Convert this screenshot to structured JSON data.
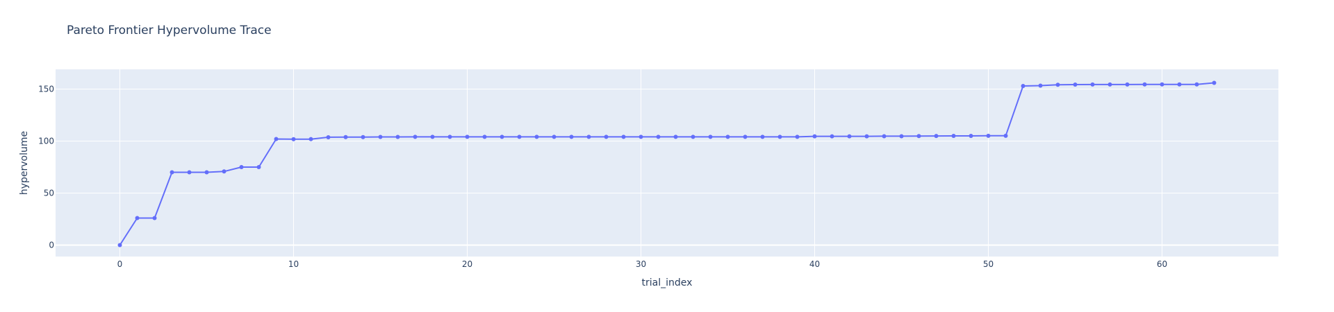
{
  "chart_data": {
    "type": "line",
    "title": "Pareto Frontier Hypervolume Trace",
    "xlabel": "trial_index",
    "ylabel": "hypervolume",
    "xlim": [
      -3.7,
      66.7
    ],
    "ylim": [
      -11,
      169
    ],
    "xticks": [
      0,
      10,
      20,
      30,
      40,
      50,
      60
    ],
    "yticks": [
      0,
      50,
      100,
      150
    ],
    "grid": true,
    "legend": "none",
    "colors": {
      "line": "#636efa",
      "plot_bg": "#e5ecf6",
      "grid": "#ffffff",
      "text": "#2a3f5f"
    },
    "series": [
      {
        "mode": "lines+markers",
        "x": [
          0,
          1,
          2,
          3,
          4,
          5,
          6,
          7,
          8,
          9,
          10,
          11,
          12,
          13,
          14,
          15,
          16,
          17,
          18,
          19,
          20,
          21,
          22,
          23,
          24,
          25,
          26,
          27,
          28,
          29,
          30,
          31,
          32,
          33,
          34,
          35,
          36,
          37,
          38,
          39,
          40,
          41,
          42,
          43,
          44,
          45,
          46,
          47,
          48,
          49,
          50,
          51,
          52,
          53,
          54,
          55,
          56,
          57,
          58,
          59,
          60,
          61,
          62,
          63
        ],
        "y": [
          0,
          26,
          26,
          70,
          70,
          70,
          70.8,
          75,
          75,
          102,
          101.8,
          101.9,
          103.7,
          103.8,
          103.8,
          104,
          104,
          104.1,
          104.1,
          104.1,
          104.1,
          104.1,
          104.1,
          104.1,
          104.1,
          104.1,
          104.1,
          104.1,
          104.1,
          104.1,
          104.1,
          104.1,
          104.1,
          104.1,
          104.1,
          104.1,
          104.1,
          104.1,
          104.1,
          104.1,
          104.6,
          104.6,
          104.6,
          104.6,
          104.7,
          104.7,
          104.8,
          104.9,
          105,
          105,
          105.1,
          105.1,
          153,
          153.3,
          154.2,
          154.3,
          154.4,
          154.4,
          154.4,
          154.5,
          154.5,
          154.5,
          154.5,
          156
        ]
      }
    ]
  }
}
